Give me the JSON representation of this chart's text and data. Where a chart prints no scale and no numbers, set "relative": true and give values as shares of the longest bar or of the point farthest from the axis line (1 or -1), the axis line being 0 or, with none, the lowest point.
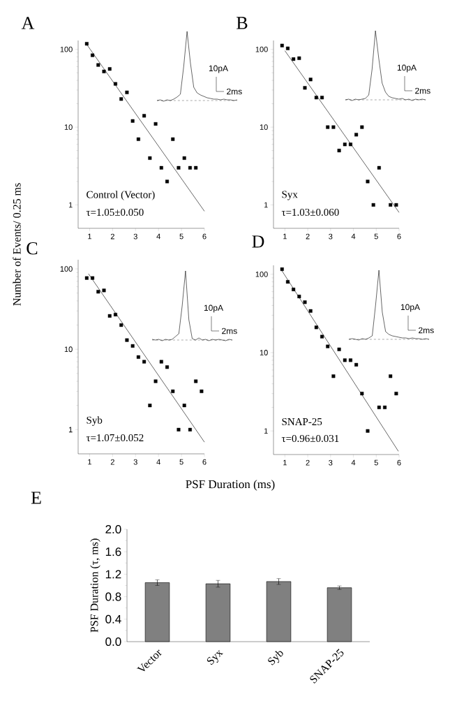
{
  "chart_data": [
    {
      "type": "scatter",
      "title": "A",
      "ylabel": "Number of Events/ 0.25 ms",
      "log": "y",
      "xlim": [
        0.5,
        6
      ],
      "ylim": [
        0.5,
        130
      ],
      "xticks": [
        1,
        2,
        3,
        4,
        5,
        6
      ],
      "yticks": [
        1,
        10,
        100
      ],
      "annotations": [
        "Control (Vector)",
        "τ=1.05±0.050"
      ],
      "series": [
        {
          "type": "scatter",
          "marker": "square",
          "color": "#000000",
          "x": [
            0.875,
            1.125,
            1.375,
            1.625,
            1.875,
            2.125,
            2.375,
            2.625,
            2.875,
            3.125,
            3.375,
            3.625,
            3.875,
            4.125,
            4.375,
            4.625,
            4.875,
            5.125,
            5.375,
            5.625
          ],
          "values": [
            118,
            84,
            63,
            52,
            56,
            36,
            23,
            28,
            12,
            7,
            14,
            4,
            11,
            3,
            2,
            7,
            3,
            4,
            3,
            3
          ]
        },
        {
          "type": "line",
          "color": "#000000",
          "x": [
            0.9,
            6
          ],
          "values": [
            113,
            0.83
          ]
        }
      ]
    },
    {
      "type": "line",
      "relative": true,
      "color": "#000000",
      "annotations": [
        "10pA",
        "2ms"
      ],
      "categories": [
        null,
        null,
        null,
        null,
        null,
        null,
        null,
        null,
        null,
        null,
        null,
        null,
        null,
        null,
        null,
        null,
        null,
        null,
        null,
        null,
        null,
        null,
        null,
        null,
        null
      ],
      "values": [
        0.01,
        0.02,
        0.0,
        0.02,
        0.01,
        0.03,
        0.06,
        0.1,
        0.5,
        1.0,
        0.55,
        0.2,
        0.12,
        0.09,
        0.07,
        0.05,
        0.04,
        0.03,
        0.03,
        0.02,
        0.03,
        0.02,
        0.02,
        0.01,
        0.02
      ],
      "ref_lines": [
        {
          "axis": "y",
          "value": 0.01,
          "line_style": "dashed",
          "color": "#555555"
        }
      ]
    },
    {
      "type": "scatter",
      "title": "B",
      "log": "y",
      "xlim": [
        0.5,
        6
      ],
      "ylim": [
        0.5,
        130
      ],
      "xticks": [
        1,
        2,
        3,
        4,
        5,
        6
      ],
      "yticks": [
        1,
        10,
        100
      ],
      "annotations": [
        "Syx",
        "τ=1.03±0.060"
      ],
      "series": [
        {
          "type": "scatter",
          "marker": "square",
          "color": "#000000",
          "x": [
            0.875,
            1.125,
            1.375,
            1.625,
            1.875,
            2.125,
            2.375,
            2.625,
            2.875,
            3.125,
            3.375,
            3.625,
            3.875,
            4.125,
            4.375,
            4.625,
            4.875,
            5.125,
            5.625,
            5.875
          ],
          "values": [
            112,
            103,
            75,
            77,
            32,
            41,
            24,
            24,
            10,
            10,
            5,
            6,
            6,
            8,
            10,
            2,
            1,
            3,
            1,
            1
          ]
        },
        {
          "type": "line",
          "color": "#000000",
          "x": [
            1.0,
            6.0
          ],
          "values": [
            96,
            0.8
          ]
        }
      ]
    },
    {
      "type": "line",
      "relative": true,
      "color": "#000000",
      "annotations": [
        "10pA",
        "2ms"
      ],
      "categories": [
        null,
        null,
        null,
        null,
        null,
        null,
        null,
        null,
        null,
        null,
        null,
        null,
        null,
        null,
        null,
        null,
        null,
        null,
        null,
        null,
        null,
        null,
        null,
        null,
        null
      ],
      "values": [
        0.01,
        0.02,
        0.0,
        0.02,
        0.01,
        0.02,
        0.03,
        0.08,
        0.45,
        1.0,
        0.6,
        0.25,
        0.12,
        0.06,
        0.04,
        0.03,
        0.02,
        0.03,
        0.01,
        0.02,
        0.0,
        0.02,
        0.01,
        0.02,
        0.01
      ],
      "ref_lines": [
        {
          "axis": "y",
          "value": 0.01,
          "line_style": "dashed",
          "color": "#555555"
        }
      ]
    },
    {
      "type": "scatter",
      "title": "C",
      "xlabel": "PSF Duration (ms)",
      "log": "y",
      "xlim": [
        0.5,
        6
      ],
      "ylim": [
        0.5,
        130
      ],
      "xticks": [
        1,
        2,
        3,
        4,
        5,
        6
      ],
      "yticks": [
        1,
        10,
        100
      ],
      "annotations": [
        "Syb",
        "τ=1.07±0.052"
      ],
      "series": [
        {
          "type": "scatter",
          "marker": "square",
          "color": "#000000",
          "x": [
            0.875,
            1.125,
            1.375,
            1.625,
            1.875,
            2.125,
            2.375,
            2.625,
            2.875,
            3.125,
            3.375,
            3.625,
            3.875,
            4.125,
            4.375,
            4.625,
            4.875,
            5.125,
            5.375,
            5.625,
            5.875
          ],
          "values": [
            77,
            77,
            52,
            54,
            26,
            27,
            20,
            13,
            11,
            8,
            7,
            2,
            4,
            7,
            6,
            3,
            1,
            2,
            1,
            4,
            3
          ]
        },
        {
          "type": "line",
          "color": "#000000",
          "x": [
            0.95,
            6
          ],
          "values": [
            87,
            0.7
          ]
        }
      ]
    },
    {
      "type": "line",
      "relative": true,
      "color": "#000000",
      "annotations": [
        "10pA",
        "2ms"
      ],
      "categories": [
        null,
        null,
        null,
        null,
        null,
        null,
        null,
        null,
        null,
        null,
        null,
        null,
        null,
        null,
        null,
        null,
        null,
        null,
        null,
        null,
        null,
        null,
        null,
        null,
        null
      ],
      "values": [
        0.02,
        0.01,
        0.02,
        0.0,
        0.02,
        0.01,
        0.02,
        0.06,
        0.1,
        0.5,
        1.0,
        0.3,
        0.03,
        0.01,
        0.04,
        0.01,
        0.02,
        0.0,
        0.02,
        0.01,
        0.02,
        0.01,
        0.0,
        0.02,
        0.01
      ],
      "ref_lines": [
        {
          "axis": "y",
          "value": 0.01,
          "line_style": "dashed",
          "color": "#555555"
        }
      ]
    },
    {
      "type": "scatter",
      "title": "D",
      "log": "y",
      "xlim": [
        0.5,
        6
      ],
      "ylim": [
        0.5,
        130
      ],
      "xticks": [
        1,
        2,
        3,
        4,
        5,
        6
      ],
      "yticks": [
        1,
        10,
        100
      ],
      "annotations": [
        "SNAP-25",
        "τ=0.96±0.031"
      ],
      "series": [
        {
          "type": "scatter",
          "marker": "square",
          "color": "#000000",
          "x": [
            0.875,
            1.125,
            1.375,
            1.625,
            1.875,
            2.125,
            2.375,
            2.625,
            2.875,
            3.125,
            3.375,
            3.625,
            3.875,
            4.125,
            4.375,
            4.625,
            5.125,
            5.375,
            5.625,
            5.875
          ],
          "values": [
            116,
            80,
            64,
            52,
            44,
            34,
            21,
            16,
            12,
            5,
            11,
            8,
            8,
            7,
            3,
            1,
            2,
            2,
            5,
            3
          ]
        },
        {
          "type": "line",
          "color": "#000000",
          "x": [
            0.85,
            5.97
          ],
          "values": [
            113,
            0.55
          ]
        }
      ]
    },
    {
      "type": "line",
      "relative": true,
      "color": "#000000",
      "annotations": [
        "10pA",
        "2ms"
      ],
      "categories": [
        null,
        null,
        null,
        null,
        null,
        null,
        null,
        null,
        null,
        null,
        null,
        null,
        null,
        null,
        null,
        null,
        null,
        null,
        null,
        null,
        null,
        null,
        null,
        null,
        null
      ],
      "values": [
        0.01,
        0.02,
        0.01,
        0.0,
        0.02,
        0.01,
        0.03,
        0.06,
        0.5,
        1.0,
        0.4,
        0.12,
        0.08,
        0.06,
        0.05,
        0.04,
        0.03,
        0.03,
        0.02,
        0.03,
        0.02,
        0.02,
        0.01,
        0.02,
        0.01
      ],
      "ref_lines": [
        {
          "axis": "y",
          "value": 0.01,
          "line_style": "dashed",
          "color": "#555555"
        }
      ]
    },
    {
      "type": "bar",
      "title": "E",
      "ylabel": "PSF Duration (τ, ms)",
      "categories": [
        "Vector",
        "Syx",
        "Syb",
        "SNAP-25"
      ],
      "values": [
        1.05,
        1.03,
        1.07,
        0.96
      ],
      "errors": [
        0.05,
        0.06,
        0.052,
        0.031
      ],
      "color": "#808080",
      "ylim": [
        0,
        2
      ],
      "yticks": [
        {
          "value": 0,
          "label": "0.0"
        },
        {
          "value": 0.4,
          "label": "0.4"
        },
        {
          "value": 0.8,
          "label": "0.8"
        },
        {
          "value": 1.2,
          "label": "1.2"
        },
        {
          "value": 1.6,
          "label": "1.6"
        },
        {
          "value": 2,
          "label": "2.0"
        }
      ]
    }
  ]
}
